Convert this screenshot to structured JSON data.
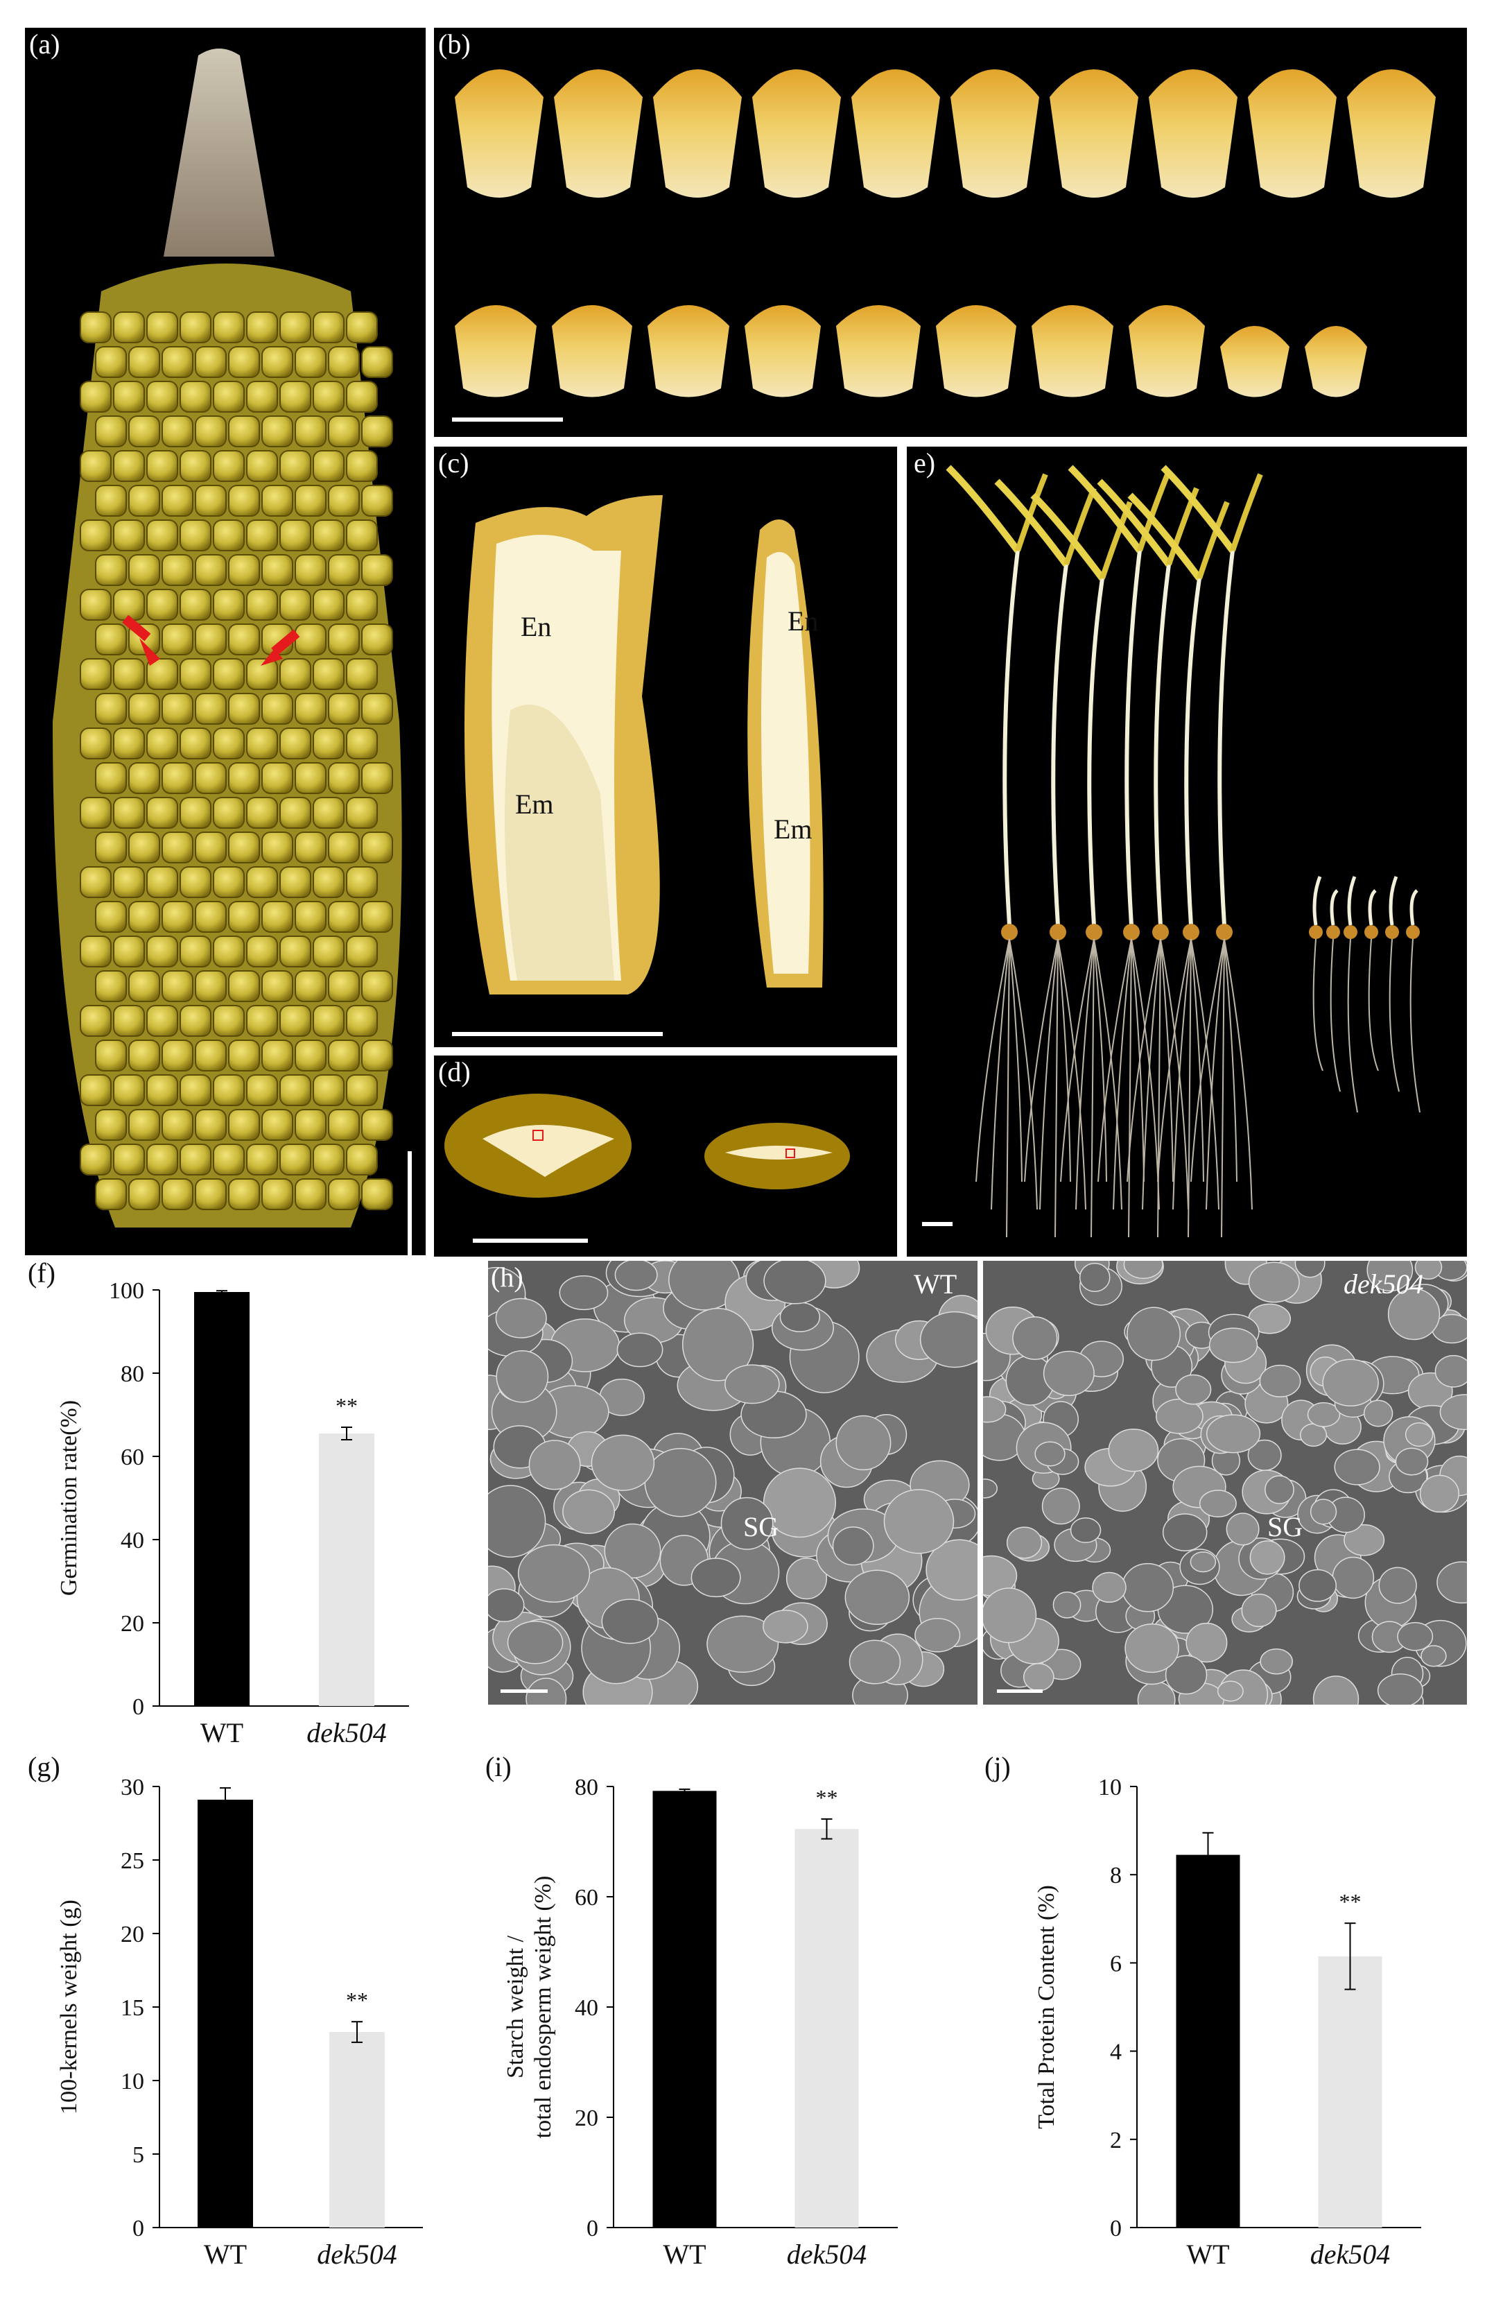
{
  "figure": {
    "panels": {
      "a": {
        "label": "(a)"
      },
      "b": {
        "label": "(b)"
      },
      "c": {
        "label": "(c)",
        "texts": [
          "En",
          "Em",
          "En",
          "Em"
        ]
      },
      "d": {
        "label": "(d)"
      },
      "e": {
        "label": "e)"
      },
      "f": {
        "label": "(f)"
      },
      "g": {
        "label": "(g)"
      },
      "h": {
        "label": "(h)",
        "wt_label": "WT",
        "mut_label": "dek504",
        "sg1": "SG",
        "sg2": "SG"
      },
      "i": {
        "label": "(i)"
      },
      "j": {
        "label": "(j)"
      }
    }
  },
  "chart_data": [
    {
      "id": "f",
      "type": "bar",
      "categories": [
        "WT",
        "dek504"
      ],
      "values": [
        99.5,
        65.5
      ],
      "errors": [
        0.3,
        1.5
      ],
      "significance": [
        "",
        "**"
      ],
      "ylabel": "Germination rate(%)",
      "ylim": [
        0,
        100
      ],
      "yticks": [
        0,
        20,
        40,
        60,
        80,
        100
      ],
      "colors": [
        "#000000",
        "#e6e6e6"
      ]
    },
    {
      "id": "g",
      "type": "bar",
      "categories": [
        "WT",
        "dek504"
      ],
      "values": [
        29.1,
        13.3
      ],
      "errors": [
        0.8,
        0.7
      ],
      "significance": [
        "",
        "**"
      ],
      "ylabel": "100-kernels weight (g)",
      "ylim": [
        0,
        30
      ],
      "yticks": [
        0,
        5,
        10,
        15,
        20,
        25,
        30
      ],
      "colors": [
        "#000000",
        "#e6e6e6"
      ]
    },
    {
      "id": "i",
      "type": "bar",
      "categories": [
        "WT",
        "dek504"
      ],
      "values": [
        79.2,
        72.3
      ],
      "errors": [
        0.3,
        1.8
      ],
      "significance": [
        "",
        "**"
      ],
      "ylabel": "Starch weight / total endosperm weight (%)",
      "ylabel_lines": [
        "Starch weight /",
        "total endosperm weight (%)"
      ],
      "ylim": [
        0,
        80
      ],
      "yticks": [
        0,
        20,
        40,
        60,
        80
      ],
      "colors": [
        "#000000",
        "#e6e6e6"
      ]
    },
    {
      "id": "j",
      "type": "bar",
      "categories": [
        "WT",
        "dek504"
      ],
      "values": [
        8.45,
        6.15
      ],
      "errors": [
        0.5,
        0.75
      ],
      "significance": [
        "",
        "**"
      ],
      "ylabel": "Total Protein Content (%)",
      "ylim": [
        0,
        10
      ],
      "yticks": [
        0,
        2,
        4,
        6,
        8,
        10
      ],
      "colors": [
        "#000000",
        "#e6e6e6"
      ]
    }
  ]
}
